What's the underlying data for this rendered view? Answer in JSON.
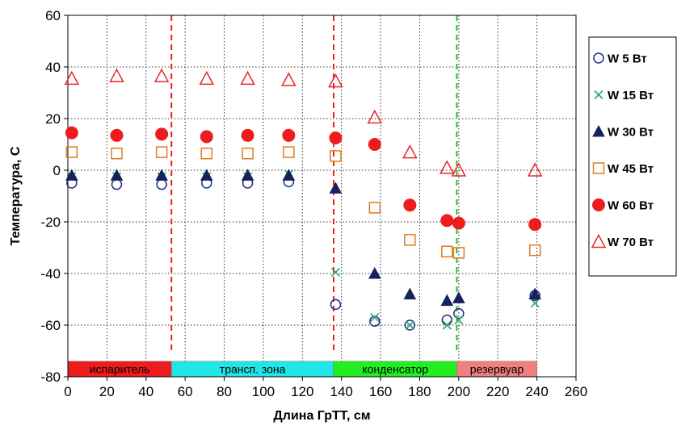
{
  "chart_data": {
    "type": "scatter",
    "xlabel": "Длина ГрТТ, см",
    "ylabel": "Температура, С",
    "xlim": [
      0,
      260
    ],
    "ylim": [
      -80,
      60
    ],
    "xticks": [
      0,
      20,
      40,
      60,
      80,
      100,
      120,
      140,
      160,
      180,
      200,
      220,
      240,
      260
    ],
    "yticks": [
      -80,
      -60,
      -40,
      -20,
      0,
      20,
      40,
      60
    ],
    "grid": true,
    "legend_position": "right",
    "x": [
      2,
      25,
      48,
      71,
      92,
      113,
      137,
      157,
      175,
      194,
      200,
      239
    ],
    "series": [
      {
        "name": "W 5 Вт",
        "marker": "circle-open",
        "color": "#1f2a8c",
        "values": [
          -5,
          -5.5,
          -5.5,
          -5,
          -5,
          -4.5,
          -52,
          -58.5,
          -60,
          -58,
          -55.5,
          -48.5
        ]
      },
      {
        "name": "W 15 Вт",
        "marker": "x",
        "color": "#2aa76a",
        "values": [
          -2.5,
          -2.5,
          -2.5,
          -2.5,
          -2.5,
          -1.5,
          -39.5,
          -57,
          -60,
          -60,
          -58,
          -51.5
        ]
      },
      {
        "name": "W 30 Вт",
        "marker": "triangle-filled",
        "color": "#16225e",
        "values": [
          -2,
          -2,
          -2,
          -2,
          -2,
          -2,
          -7,
          -40,
          -48,
          -50.5,
          -49.5,
          -48
        ]
      },
      {
        "name": "W 45 Вт",
        "marker": "square-open",
        "color": "#e07b22",
        "values": [
          7,
          6.5,
          7,
          6.5,
          6.5,
          7,
          5.5,
          -14.5,
          -27,
          -31.5,
          -32,
          -31
        ]
      },
      {
        "name": "W 60 Вт",
        "marker": "circle-filled",
        "color": "#ee1c1c",
        "values": [
          14.5,
          13.5,
          14,
          13,
          13.5,
          13.5,
          12.5,
          10,
          -13.5,
          -19.5,
          -20.5,
          -21
        ]
      },
      {
        "name": "W 70 Вт",
        "marker": "triangle-open",
        "color": "#e8262a",
        "values": [
          35.5,
          36.5,
          36.5,
          35.5,
          35.5,
          35,
          34.5,
          20.5,
          7,
          1,
          0,
          0
        ]
      }
    ],
    "vlines": [
      {
        "x": 53,
        "y_from": -70,
        "y_to": 60,
        "color": "#ee2222",
        "style": "dashed"
      },
      {
        "x": 136,
        "y_from": -70,
        "y_to": 60,
        "color": "#ee2222",
        "style": "dashed"
      },
      {
        "x": 199,
        "y_from": -70,
        "y_to": 60,
        "color": "#22c022",
        "style": "dashed"
      }
    ],
    "zones": [
      {
        "label": "испаритель",
        "x_from": 0,
        "x_to": 53,
        "color": "#ee1c1c"
      },
      {
        "label": "трансп. зона",
        "x_from": 53,
        "x_to": 136,
        "color": "#22e5e5"
      },
      {
        "label": "конденсатор",
        "x_from": 136,
        "x_to": 199,
        "color": "#22ee22"
      },
      {
        "label": "резервуар",
        "x_from": 199,
        "x_to": 240,
        "color": "#f08080"
      }
    ],
    "zone_band_y": [
      -80,
      -74
    ]
  }
}
